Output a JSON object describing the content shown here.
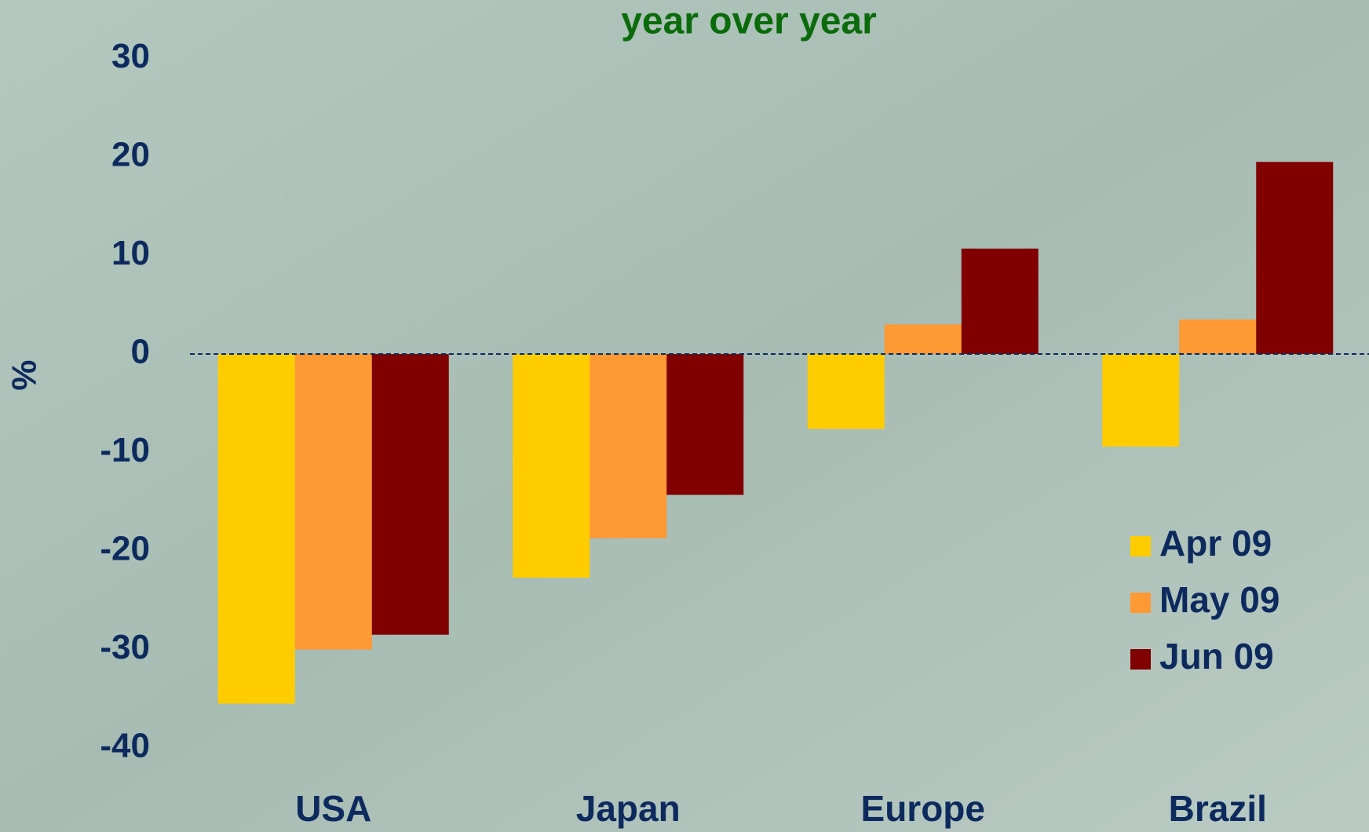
{
  "chart_data": {
    "type": "bar",
    "title": "year over year",
    "y_label": "%",
    "categories": [
      "USA",
      "Japan",
      "Europe",
      "Brazil"
    ],
    "series": [
      {
        "name": "Apr 09",
        "color": "#ffcc00",
        "values": [
          -35.5,
          -22.7,
          -7.6,
          -9.4
        ]
      },
      {
        "name": "May 09",
        "color": "#ff9933",
        "values": [
          -30,
          -18.7,
          3,
          3.5
        ]
      },
      {
        "name": "Jun 09",
        "color": "#800000",
        "values": [
          -28.5,
          -14.3,
          10.7,
          19.5
        ]
      }
    ],
    "ylim": [
      -40,
      30
    ],
    "yticks": [
      -40,
      -30,
      -20,
      -10,
      0,
      10,
      20,
      30
    ],
    "legend": "lower right"
  }
}
